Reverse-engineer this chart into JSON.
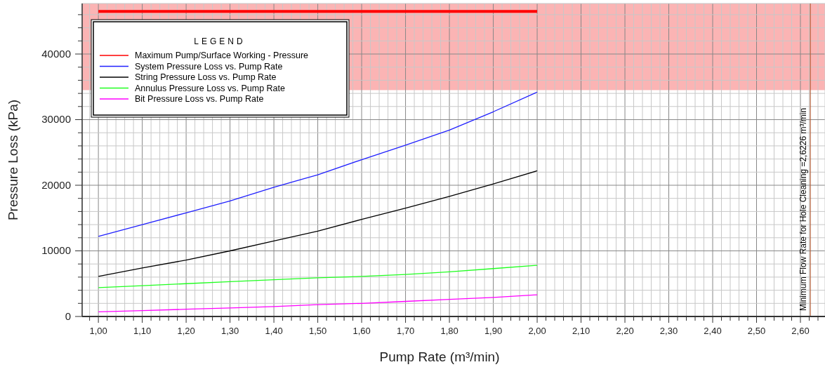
{
  "chart_data": {
    "type": "line",
    "xlabel": "Pump Rate (m³/min)",
    "ylabel": "Pressure Loss (kPa)",
    "legend_title": "LEGEND",
    "legend": "top left",
    "grid": true,
    "line_style": "solid",
    "marker": "none",
    "x": [
      1.0,
      1.1,
      1.2,
      1.3,
      1.4,
      1.5,
      1.6,
      1.7,
      1.8,
      1.9,
      2.0
    ],
    "xlim": [
      0.963,
      2.656
    ],
    "ylim": [
      0,
      47700
    ],
    "xticks": [
      {
        "value": 0.98,
        "label": null
      },
      {
        "value": 1.0,
        "label": "1,00"
      },
      {
        "value": 1.02,
        "label": null
      },
      {
        "value": 1.04,
        "label": null
      },
      {
        "value": 1.06,
        "label": null
      },
      {
        "value": 1.08,
        "label": null
      },
      {
        "value": 1.1,
        "label": "1,10"
      },
      {
        "value": 1.12,
        "label": null
      },
      {
        "value": 1.14,
        "label": null
      },
      {
        "value": 1.16,
        "label": null
      },
      {
        "value": 1.18,
        "label": null
      },
      {
        "value": 1.2,
        "label": "1,20"
      },
      {
        "value": 1.22,
        "label": null
      },
      {
        "value": 1.24,
        "label": null
      },
      {
        "value": 1.26,
        "label": null
      },
      {
        "value": 1.28,
        "label": null
      },
      {
        "value": 1.3,
        "label": "1,30"
      },
      {
        "value": 1.32,
        "label": null
      },
      {
        "value": 1.34,
        "label": null
      },
      {
        "value": 1.36,
        "label": null
      },
      {
        "value": 1.38,
        "label": null
      },
      {
        "value": 1.4,
        "label": "1,40"
      },
      {
        "value": 1.42,
        "label": null
      },
      {
        "value": 1.44,
        "label": null
      },
      {
        "value": 1.46,
        "label": null
      },
      {
        "value": 1.48,
        "label": null
      },
      {
        "value": 1.5,
        "label": "1,50"
      },
      {
        "value": 1.52,
        "label": null
      },
      {
        "value": 1.54,
        "label": null
      },
      {
        "value": 1.56,
        "label": null
      },
      {
        "value": 1.58,
        "label": null
      },
      {
        "value": 1.6,
        "label": "1,60"
      },
      {
        "value": 1.62,
        "label": null
      },
      {
        "value": 1.64,
        "label": null
      },
      {
        "value": 1.66,
        "label": null
      },
      {
        "value": 1.68,
        "label": null
      },
      {
        "value": 1.7,
        "label": "1,70"
      },
      {
        "value": 1.72,
        "label": null
      },
      {
        "value": 1.74,
        "label": null
      },
      {
        "value": 1.76,
        "label": null
      },
      {
        "value": 1.78,
        "label": null
      },
      {
        "value": 1.8,
        "label": "1,80"
      },
      {
        "value": 1.82,
        "label": null
      },
      {
        "value": 1.84,
        "label": null
      },
      {
        "value": 1.86,
        "label": null
      },
      {
        "value": 1.88,
        "label": null
      },
      {
        "value": 1.9,
        "label": "1,90"
      },
      {
        "value": 1.92,
        "label": null
      },
      {
        "value": 1.94,
        "label": null
      },
      {
        "value": 1.96,
        "label": null
      },
      {
        "value": 1.98,
        "label": null
      },
      {
        "value": 2.0,
        "label": "2,00"
      },
      {
        "value": 2.02,
        "label": null
      },
      {
        "value": 2.04,
        "label": null
      },
      {
        "value": 2.06,
        "label": null
      },
      {
        "value": 2.08,
        "label": null
      },
      {
        "value": 2.1,
        "label": "2,10"
      },
      {
        "value": 2.12,
        "label": null
      },
      {
        "value": 2.14,
        "label": null
      },
      {
        "value": 2.16,
        "label": null
      },
      {
        "value": 2.18,
        "label": null
      },
      {
        "value": 2.2,
        "label": "2,20"
      },
      {
        "value": 2.22,
        "label": null
      },
      {
        "value": 2.24,
        "label": null
      },
      {
        "value": 2.26,
        "label": null
      },
      {
        "value": 2.28,
        "label": null
      },
      {
        "value": 2.3,
        "label": "2,30"
      },
      {
        "value": 2.32,
        "label": null
      },
      {
        "value": 2.34,
        "label": null
      },
      {
        "value": 2.36,
        "label": null
      },
      {
        "value": 2.38,
        "label": null
      },
      {
        "value": 2.4,
        "label": "2,40"
      },
      {
        "value": 2.42,
        "label": null
      },
      {
        "value": 2.44,
        "label": null
      },
      {
        "value": 2.46,
        "label": null
      },
      {
        "value": 2.48,
        "label": null
      },
      {
        "value": 2.5,
        "label": "2,50"
      },
      {
        "value": 2.52,
        "label": null
      },
      {
        "value": 2.54,
        "label": null
      },
      {
        "value": 2.56,
        "label": null
      },
      {
        "value": 2.58,
        "label": null
      },
      {
        "value": 2.6,
        "label": "2,60"
      },
      {
        "value": 2.62,
        "label": null
      },
      {
        "value": 2.64,
        "label": null
      }
    ],
    "yticks": [
      0,
      {
        "value": 2000,
        "label": null
      },
      {
        "value": 4000,
        "label": null
      },
      {
        "value": 6000,
        "label": null
      },
      {
        "value": 8000,
        "label": null
      },
      10000,
      {
        "value": 12000,
        "label": null
      },
      {
        "value": 14000,
        "label": null
      },
      {
        "value": 16000,
        "label": null
      },
      {
        "value": 18000,
        "label": null
      },
      20000,
      {
        "value": 22000,
        "label": null
      },
      {
        "value": 24000,
        "label": null
      },
      {
        "value": 26000,
        "label": null
      },
      {
        "value": 28000,
        "label": null
      },
      30000,
      {
        "value": 32000,
        "label": null
      },
      {
        "value": 34000,
        "label": null
      },
      {
        "value": 36000,
        "label": null
      },
      {
        "value": 38000,
        "label": null
      },
      40000,
      {
        "value": 42000,
        "label": null
      },
      {
        "value": 44000,
        "label": null
      },
      {
        "value": 46000,
        "label": null
      }
    ],
    "bands": [
      {
        "axis": "y",
        "from": 34500,
        "to": 47700,
        "color": "#fbb4b4"
      }
    ],
    "ref_lines": [
      {
        "axis": "x",
        "value": 2.6226,
        "label": "Minimum Flow Rate for Hole Cleaning =2,6226 m³/min",
        "color": "#b4603c",
        "line_style": "solid"
      }
    ],
    "series": [
      {
        "name": "Maximum Pump/Surface Working - Pressure",
        "color": "#ff0000",
        "x": [
          1.0,
          2.0
        ],
        "values": [
          46500,
          46500
        ]
      },
      {
        "name": "System Pressure Loss vs. Pump Rate",
        "color": "#2020ff",
        "values": [
          12200,
          14000,
          15800,
          17600,
          19700,
          21600,
          23900,
          26100,
          28400,
          31200,
          34200
        ]
      },
      {
        "name": "String Pressure Loss vs. Pump Rate",
        "color": "#000000",
        "values": [
          6100,
          7400,
          8600,
          10000,
          11500,
          13000,
          14800,
          16500,
          18300,
          20200,
          22200
        ]
      },
      {
        "name": "Annulus Pressure Loss vs. Pump Rate",
        "color": "#20ff20",
        "values": [
          4400,
          4700,
          5000,
          5300,
          5600,
          5900,
          6100,
          6400,
          6800,
          7300,
          7800
        ]
      },
      {
        "name": "Bit Pressure Loss vs. Pump Rate",
        "color": "#ff00ff",
        "values": [
          700,
          900,
          1100,
          1300,
          1500,
          1800,
          2000,
          2300,
          2600,
          2900,
          3300
        ]
      }
    ]
  }
}
